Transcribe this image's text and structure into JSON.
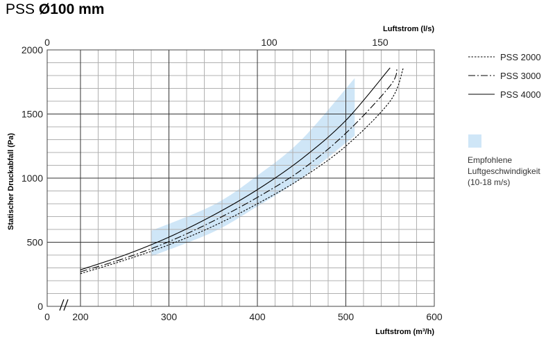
{
  "title": {
    "prefix": "PSS",
    "size": "Ø100 mm"
  },
  "chart_data": {
    "type": "line",
    "xlabel": "Luftstrom (m³/h)",
    "x2label": "Luftstrom (l/s)",
    "ylabel": "Statischer Druckabfall (Pa)",
    "xlim": [
      160,
      600
    ],
    "x_ticks": [
      200,
      300,
      400,
      500,
      600
    ],
    "x_origin_label": "0",
    "x_axis_break": true,
    "x2_ticks": [
      0,
      100,
      150
    ],
    "ylim": [
      0,
      2000
    ],
    "y_ticks": [
      0,
      500,
      1000,
      1500,
      2000
    ],
    "grid": true,
    "legend_position": "right",
    "series": [
      {
        "name": "PSS 2000",
        "style": "dotted",
        "x": [
          200,
          250,
          300,
          350,
          400,
          450,
          500,
          550,
          565
        ],
        "y": [
          255,
          360,
          480,
          625,
          800,
          1000,
          1250,
          1600,
          1860
        ]
      },
      {
        "name": "PSS 3000",
        "style": "dashed",
        "x": [
          200,
          250,
          300,
          350,
          400,
          450,
          500,
          550,
          558
        ],
        "y": [
          270,
          375,
          505,
          665,
          850,
          1065,
          1350,
          1720,
          1860
        ]
      },
      {
        "name": "PSS 4000",
        "style": "solid",
        "x": [
          200,
          250,
          300,
          350,
          400,
          450,
          500,
          550
        ],
        "y": [
          285,
          400,
          540,
          710,
          910,
          1150,
          1450,
          1860
        ]
      }
    ],
    "recommended_band": {
      "label": [
        "Empfohlene",
        "Luftgeschwindigkeit",
        "(10-18 m/s)"
      ],
      "color": "#cfe6f7",
      "upper": {
        "x": [
          280,
          350,
          400,
          450,
          510
        ],
        "y": [
          590,
          790,
          1020,
          1300,
          1780
        ]
      },
      "lower": {
        "x": [
          510,
          450,
          400,
          350,
          280
        ],
        "y": [
          1330,
          1000,
          780,
          580,
          390
        ]
      }
    }
  }
}
